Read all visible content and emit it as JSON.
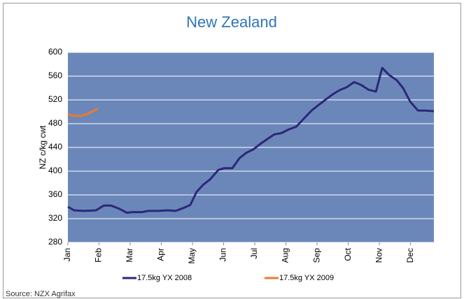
{
  "chart_data": {
    "type": "line",
    "title": "New Zealand",
    "y_label": "NZ c/kg cwt",
    "source": "Source: NZX Agrifax",
    "xlim": [
      0,
      11.75
    ],
    "xticks": [
      {
        "value": 0,
        "label": "Jan"
      },
      {
        "value": 1,
        "label": "Feb"
      },
      {
        "value": 2,
        "label": "Mar"
      },
      {
        "value": 3,
        "label": "Apr"
      },
      {
        "value": 4,
        "label": "May"
      },
      {
        "value": 5,
        "label": "Jun"
      },
      {
        "value": 6,
        "label": "Jul"
      },
      {
        "value": 7,
        "label": "Aug"
      },
      {
        "value": 8,
        "label": "Sep"
      },
      {
        "value": 9,
        "label": "Oct"
      },
      {
        "value": 10,
        "label": "Nov"
      },
      {
        "value": 11,
        "label": "Dec"
      }
    ],
    "ylim": [
      280,
      600
    ],
    "yticks": [
      280,
      320,
      360,
      400,
      440,
      480,
      520,
      560,
      600
    ],
    "grid": true,
    "background": "#6b87ba",
    "series": [
      {
        "name": "17.5kg YX 2008",
        "color": "#2b2878",
        "x": [
          0,
          0.2,
          0.52,
          0.9,
          1.15,
          1.39,
          1.64,
          1.89,
          2.09,
          2.38,
          2.58,
          2.88,
          3.21,
          3.46,
          3.71,
          3.93,
          4.13,
          4.34,
          4.56,
          4.83,
          5.01,
          5.28,
          5.51,
          5.73,
          5.96,
          6.18,
          6.43,
          6.63,
          6.85,
          7.08,
          7.33,
          7.53,
          7.82,
          8.04,
          8.29,
          8.52,
          8.74,
          8.94,
          9.19,
          9.42,
          9.66,
          9.89,
          10.09,
          10.31,
          10.56,
          10.76,
          10.99,
          11.24,
          11.46,
          11.75
        ],
        "values": [
          340,
          334,
          333,
          334,
          342,
          342,
          337,
          330,
          331,
          331,
          333,
          333,
          334,
          333,
          338,
          343,
          365,
          377,
          386,
          402,
          405,
          405,
          422,
          431,
          437,
          446,
          455,
          462,
          464,
          470,
          475,
          486,
          502,
          511,
          521,
          530,
          537,
          541,
          550,
          545,
          537,
          534,
          574,
          562,
          553,
          540,
          517,
          502,
          502,
          501
        ]
      },
      {
        "name": "17.5kg YX 2009",
        "color": "#f0782c",
        "x": [
          0,
          0.2,
          0.4,
          0.61,
          0.81,
          0.97
        ],
        "values": [
          496,
          493,
          493,
          496,
          501,
          505
        ]
      }
    ]
  }
}
